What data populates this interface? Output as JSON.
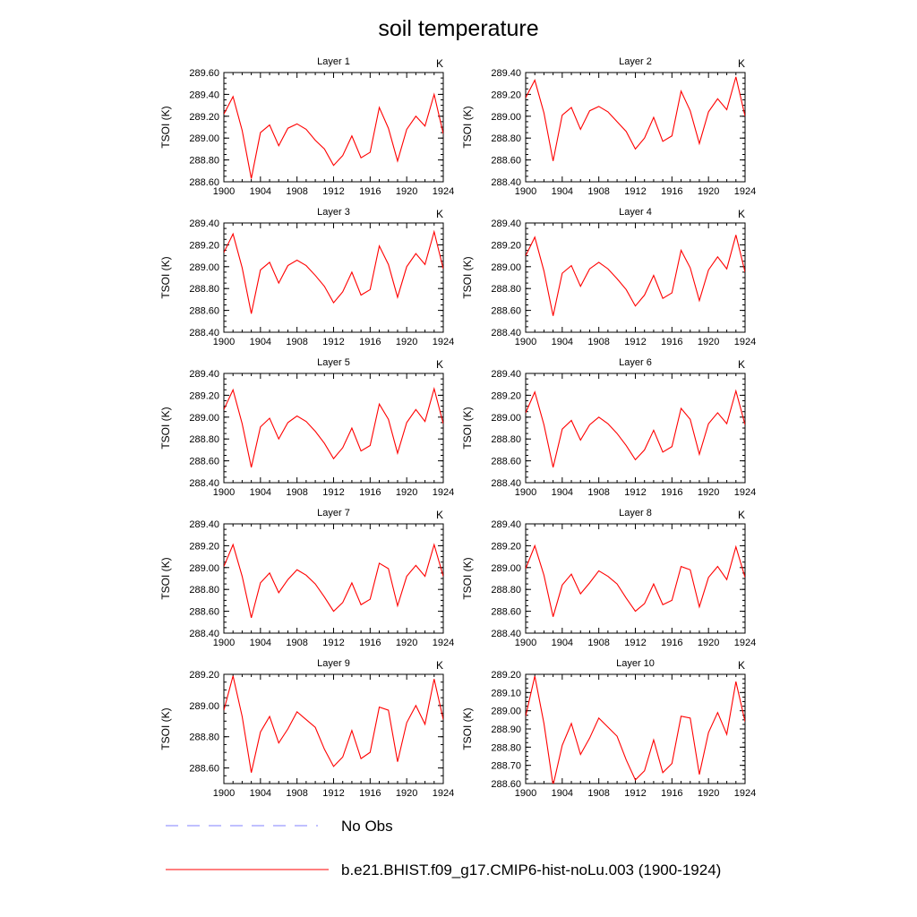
{
  "title": "soil temperature",
  "colors": {
    "model_line": "#ff0000",
    "obs_line": "#8080ff",
    "axis": "#000000"
  },
  "legend": [
    {
      "label": "No Obs",
      "style": "dashed",
      "color": "#8080ff"
    },
    {
      "label": "b.e21.BHIST.f09_g17.CMIP6-hist-noLu.003 (1900-1924)",
      "style": "solid",
      "color": "#ff0000"
    }
  ],
  "chart_data": [
    {
      "type": "line",
      "title": "Layer 1",
      "units": "K",
      "ylabel": "TSOI  (K)",
      "x": [
        1900,
        1901,
        1902,
        1903,
        1904,
        1905,
        1906,
        1907,
        1908,
        1909,
        1910,
        1911,
        1912,
        1913,
        1914,
        1915,
        1916,
        1917,
        1918,
        1919,
        1920,
        1921,
        1922,
        1923,
        1924
      ],
      "xlim": [
        1900,
        1924
      ],
      "xticks": [
        1900,
        1904,
        1908,
        1912,
        1916,
        1920,
        1924
      ],
      "ylim": [
        288.6,
        289.6
      ],
      "yticks": [
        "288.60",
        "288.80",
        "289.00",
        "289.20",
        "289.40",
        "289.60"
      ],
      "series": [
        {
          "name": "b.e21.BHIST.f09_g17.CMIP6-hist-noLu.003 (1900-1924)",
          "values": [
            289.22,
            289.38,
            289.07,
            288.63,
            289.05,
            289.12,
            288.93,
            289.09,
            289.13,
            289.08,
            288.98,
            288.9,
            288.75,
            288.84,
            289.02,
            288.82,
            288.87,
            289.28,
            289.09,
            288.79,
            289.08,
            289.2,
            289.11,
            289.4,
            289.04
          ]
        }
      ]
    },
    {
      "type": "line",
      "title": "Layer 2",
      "units": "K",
      "ylabel": "TSOI  (K)",
      "x": [
        1900,
        1901,
        1902,
        1903,
        1904,
        1905,
        1906,
        1907,
        1908,
        1909,
        1910,
        1911,
        1912,
        1913,
        1914,
        1915,
        1916,
        1917,
        1918,
        1919,
        1920,
        1921,
        1922,
        1923,
        1924
      ],
      "xlim": [
        1900,
        1924
      ],
      "xticks": [
        1900,
        1904,
        1908,
        1912,
        1916,
        1920,
        1924
      ],
      "ylim": [
        288.4,
        289.4
      ],
      "yticks": [
        "288.40",
        "288.60",
        "288.80",
        "289.00",
        "289.20",
        "289.40"
      ],
      "series": [
        {
          "name": "b.e21.BHIST.f09_g17.CMIP6-hist-noLu.003 (1900-1924)",
          "values": [
            289.17,
            289.33,
            289.03,
            288.59,
            289.01,
            289.08,
            288.88,
            289.05,
            289.09,
            289.04,
            288.95,
            288.86,
            288.7,
            288.8,
            288.99,
            288.77,
            288.82,
            289.23,
            289.05,
            288.75,
            289.04,
            289.16,
            289.06,
            289.36,
            289.0
          ]
        }
      ]
    },
    {
      "type": "line",
      "title": "Layer 3",
      "units": "K",
      "ylabel": "TSOI  (K)",
      "x": [
        1900,
        1901,
        1902,
        1903,
        1904,
        1905,
        1906,
        1907,
        1908,
        1909,
        1910,
        1911,
        1912,
        1913,
        1914,
        1915,
        1916,
        1917,
        1918,
        1919,
        1920,
        1921,
        1922,
        1923,
        1924
      ],
      "xlim": [
        1900,
        1924
      ],
      "xticks": [
        1900,
        1904,
        1908,
        1912,
        1916,
        1920,
        1924
      ],
      "ylim": [
        288.4,
        289.4
      ],
      "yticks": [
        "288.40",
        "288.60",
        "288.80",
        "289.00",
        "289.20",
        "289.40"
      ],
      "series": [
        {
          "name": "b.e21.BHIST.f09_g17.CMIP6-hist-noLu.003 (1900-1924)",
          "values": [
            289.13,
            289.3,
            288.99,
            288.57,
            288.97,
            289.04,
            288.85,
            289.01,
            289.06,
            289.01,
            288.92,
            288.82,
            288.67,
            288.77,
            288.95,
            288.74,
            288.79,
            289.19,
            289.02,
            288.72,
            289.0,
            289.12,
            289.02,
            289.32,
            288.98
          ]
        }
      ]
    },
    {
      "type": "line",
      "title": "Layer 4",
      "units": "K",
      "ylabel": "TSOI  (K)",
      "x": [
        1900,
        1901,
        1902,
        1903,
        1904,
        1905,
        1906,
        1907,
        1908,
        1909,
        1910,
        1911,
        1912,
        1913,
        1914,
        1915,
        1916,
        1917,
        1918,
        1919,
        1920,
        1921,
        1922,
        1923,
        1924
      ],
      "xlim": [
        1900,
        1924
      ],
      "xticks": [
        1900,
        1904,
        1908,
        1912,
        1916,
        1920,
        1924
      ],
      "ylim": [
        288.4,
        289.4
      ],
      "yticks": [
        "288.40",
        "288.60",
        "288.80",
        "289.00",
        "289.20",
        "289.40"
      ],
      "series": [
        {
          "name": "b.e21.BHIST.f09_g17.CMIP6-hist-noLu.003 (1900-1924)",
          "values": [
            289.1,
            289.27,
            288.96,
            288.55,
            288.94,
            289.01,
            288.82,
            288.98,
            289.04,
            288.98,
            288.89,
            288.79,
            288.64,
            288.74,
            288.92,
            288.71,
            288.76,
            289.15,
            288.99,
            288.69,
            288.97,
            289.09,
            288.98,
            289.29,
            288.95
          ]
        }
      ]
    },
    {
      "type": "line",
      "title": "Layer 5",
      "units": "K",
      "ylabel": "TSOI  (K)",
      "x": [
        1900,
        1901,
        1902,
        1903,
        1904,
        1905,
        1906,
        1907,
        1908,
        1909,
        1910,
        1911,
        1912,
        1913,
        1914,
        1915,
        1916,
        1917,
        1918,
        1919,
        1920,
        1921,
        1922,
        1923,
        1924
      ],
      "xlim": [
        1900,
        1924
      ],
      "xticks": [
        1900,
        1904,
        1908,
        1912,
        1916,
        1920,
        1924
      ],
      "ylim": [
        288.4,
        289.4
      ],
      "yticks": [
        "288.40",
        "288.60",
        "288.80",
        "289.00",
        "289.20",
        "289.40"
      ],
      "series": [
        {
          "name": "b.e21.BHIST.f09_g17.CMIP6-hist-noLu.003 (1900-1924)",
          "values": [
            289.07,
            289.25,
            288.94,
            288.54,
            288.91,
            288.99,
            288.8,
            288.95,
            289.01,
            288.96,
            288.87,
            288.76,
            288.62,
            288.72,
            288.9,
            288.69,
            288.74,
            289.12,
            288.98,
            288.67,
            288.95,
            289.07,
            288.96,
            289.26,
            288.94
          ]
        }
      ]
    },
    {
      "type": "line",
      "title": "Layer 6",
      "units": "K",
      "ylabel": "TSOI  (K)",
      "x": [
        1900,
        1901,
        1902,
        1903,
        1904,
        1905,
        1906,
        1907,
        1908,
        1909,
        1910,
        1911,
        1912,
        1913,
        1914,
        1915,
        1916,
        1917,
        1918,
        1919,
        1920,
        1921,
        1922,
        1923,
        1924
      ],
      "xlim": [
        1900,
        1924
      ],
      "xticks": [
        1900,
        1904,
        1908,
        1912,
        1916,
        1920,
        1924
      ],
      "ylim": [
        288.4,
        289.4
      ],
      "yticks": [
        "288.40",
        "288.60",
        "288.80",
        "289.00",
        "289.20",
        "289.40"
      ],
      "series": [
        {
          "name": "b.e21.BHIST.f09_g17.CMIP6-hist-noLu.003 (1900-1924)",
          "values": [
            289.04,
            289.23,
            288.93,
            288.54,
            288.89,
            288.97,
            288.79,
            288.93,
            289.0,
            288.94,
            288.85,
            288.74,
            288.61,
            288.7,
            288.88,
            288.68,
            288.73,
            289.08,
            288.98,
            288.66,
            288.94,
            289.04,
            288.94,
            289.24,
            288.93
          ]
        }
      ]
    },
    {
      "type": "line",
      "title": "Layer 7",
      "units": "K",
      "ylabel": "TSOI  (K)",
      "x": [
        1900,
        1901,
        1902,
        1903,
        1904,
        1905,
        1906,
        1907,
        1908,
        1909,
        1910,
        1911,
        1912,
        1913,
        1914,
        1915,
        1916,
        1917,
        1918,
        1919,
        1920,
        1921,
        1922,
        1923,
        1924
      ],
      "xlim": [
        1900,
        1924
      ],
      "xticks": [
        1900,
        1904,
        1908,
        1912,
        1916,
        1920,
        1924
      ],
      "ylim": [
        288.4,
        289.4
      ],
      "yticks": [
        "288.40",
        "288.60",
        "288.80",
        "289.00",
        "289.20",
        "289.40"
      ],
      "series": [
        {
          "name": "b.e21.BHIST.f09_g17.CMIP6-hist-noLu.003 (1900-1924)",
          "values": [
            289.01,
            289.21,
            288.92,
            288.54,
            288.86,
            288.95,
            288.77,
            288.89,
            288.98,
            288.93,
            288.85,
            288.73,
            288.6,
            288.68,
            288.86,
            288.66,
            288.71,
            289.04,
            288.99,
            288.65,
            288.92,
            289.02,
            288.92,
            289.21,
            288.92
          ]
        }
      ]
    },
    {
      "type": "line",
      "title": "Layer 8",
      "units": "K",
      "ylabel": "TSOI  (K)",
      "x": [
        1900,
        1901,
        1902,
        1903,
        1904,
        1905,
        1906,
        1907,
        1908,
        1909,
        1910,
        1911,
        1912,
        1913,
        1914,
        1915,
        1916,
        1917,
        1918,
        1919,
        1920,
        1921,
        1922,
        1923,
        1924
      ],
      "xlim": [
        1900,
        1924
      ],
      "xticks": [
        1900,
        1904,
        1908,
        1912,
        1916,
        1920,
        1924
      ],
      "ylim": [
        288.4,
        289.4
      ],
      "yticks": [
        "288.40",
        "288.60",
        "288.80",
        "289.00",
        "289.20",
        "289.40"
      ],
      "series": [
        {
          "name": "b.e21.BHIST.f09_g17.CMIP6-hist-noLu.003 (1900-1924)",
          "values": [
            288.99,
            289.2,
            288.93,
            288.55,
            288.84,
            288.94,
            288.76,
            288.86,
            288.97,
            288.92,
            288.85,
            288.72,
            288.6,
            288.67,
            288.85,
            288.66,
            288.7,
            289.01,
            288.98,
            288.64,
            288.91,
            289.01,
            288.89,
            289.19,
            288.91
          ]
        }
      ]
    },
    {
      "type": "line",
      "title": "Layer 9",
      "units": "K",
      "ylabel": "TSOI  (K)",
      "x": [
        1900,
        1901,
        1902,
        1903,
        1904,
        1905,
        1906,
        1907,
        1908,
        1909,
        1910,
        1911,
        1912,
        1913,
        1914,
        1915,
        1916,
        1917,
        1918,
        1919,
        1920,
        1921,
        1922,
        1923,
        1924
      ],
      "xlim": [
        1900,
        1924
      ],
      "xticks": [
        1900,
        1904,
        1908,
        1912,
        1916,
        1920,
        1924
      ],
      "ylim": [
        288.5,
        289.2
      ],
      "yticks": [
        "288.60",
        "288.80",
        "289.00",
        "289.20"
      ],
      "series": [
        {
          "name": "b.e21.BHIST.f09_g17.CMIP6-hist-noLu.003 (1900-1924)",
          "values": [
            288.97,
            289.19,
            288.93,
            288.57,
            288.83,
            288.93,
            288.76,
            288.85,
            288.96,
            288.91,
            288.86,
            288.72,
            288.61,
            288.67,
            288.84,
            288.66,
            288.7,
            288.99,
            288.97,
            288.64,
            288.89,
            289.0,
            288.88,
            289.17,
            288.91
          ]
        }
      ]
    },
    {
      "type": "line",
      "title": "Layer 10",
      "units": "K",
      "ylabel": "TSOI  (K)",
      "x": [
        1900,
        1901,
        1902,
        1903,
        1904,
        1905,
        1906,
        1907,
        1908,
        1909,
        1910,
        1911,
        1912,
        1913,
        1914,
        1915,
        1916,
        1917,
        1918,
        1919,
        1920,
        1921,
        1922,
        1923,
        1924
      ],
      "xlim": [
        1900,
        1924
      ],
      "xticks": [
        1900,
        1904,
        1908,
        1912,
        1916,
        1920,
        1924
      ],
      "ylim": [
        288.6,
        289.2
      ],
      "yticks": [
        "288.60",
        "288.70",
        "288.80",
        "288.90",
        "289.00",
        "289.10",
        "289.20"
      ],
      "series": [
        {
          "name": "b.e21.BHIST.f09_g17.CMIP6-hist-noLu.003 (1900-1924)",
          "values": [
            288.97,
            289.19,
            288.93,
            288.59,
            288.81,
            288.93,
            288.76,
            288.85,
            288.96,
            288.91,
            288.86,
            288.73,
            288.62,
            288.67,
            288.84,
            288.66,
            288.71,
            288.97,
            288.96,
            288.65,
            288.88,
            288.99,
            288.87,
            289.16,
            288.94
          ]
        }
      ]
    }
  ]
}
